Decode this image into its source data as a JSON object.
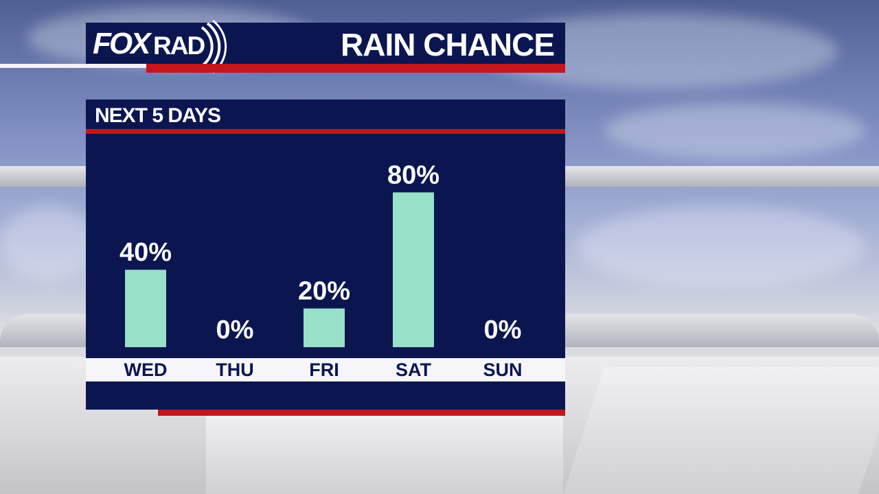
{
  "header": {
    "logo_fox": "FOX",
    "logo_rad": "RAD",
    "title": "RAIN CHANCE"
  },
  "panel": {
    "heading": "NEXT 5 DAYS"
  },
  "colors": {
    "navy": "#0b1651",
    "red_accent": "#c4161c",
    "bar": "#98e0c8",
    "text_light": "#ffffff"
  },
  "chart_data": {
    "type": "bar",
    "title": "RAIN CHANCE",
    "subtitle": "NEXT 5 DAYS",
    "categories": [
      "WED",
      "THU",
      "FRI",
      "SAT",
      "SUN"
    ],
    "values": [
      40,
      0,
      20,
      80,
      0
    ],
    "labels": [
      "40%",
      "0%",
      "20%",
      "80%",
      "0%"
    ],
    "unit": "%",
    "ylim": [
      0,
      100
    ],
    "grid": false,
    "legend": "none"
  }
}
